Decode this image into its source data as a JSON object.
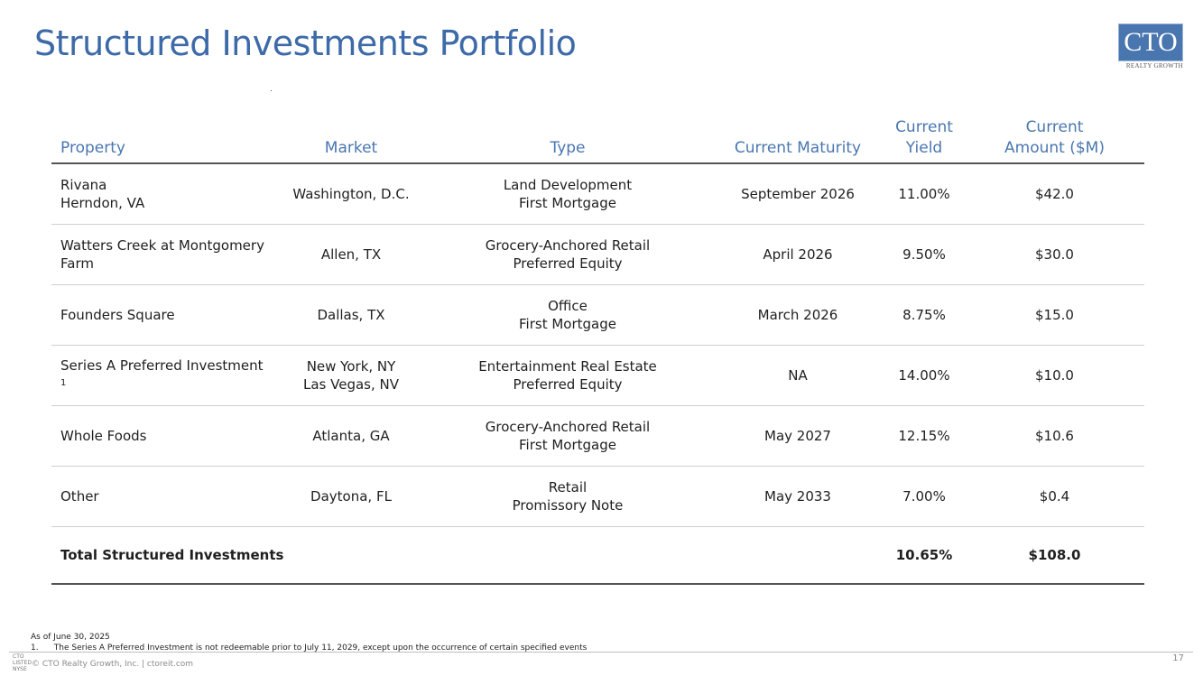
{
  "title": "Structured Investments Portfolio",
  "logo": {
    "mark": "CTO",
    "sub": "REALTY GROWTH"
  },
  "table": {
    "headers": {
      "property": "Property",
      "market": "Market",
      "type": "Type",
      "maturity": "Current Maturity",
      "yield_1": "Current",
      "yield_2": "Yield",
      "amount_1": "Current",
      "amount_2": "Amount ($M)"
    },
    "rows": [
      {
        "property_1": "Rivana",
        "property_2": "Herndon, VA",
        "market_1": "Washington, D.C.",
        "market_2": "",
        "type_1": "Land Development",
        "type_2": "First Mortgage",
        "maturity": "September 2026",
        "yield": "11.00%",
        "amount": "$42.0"
      },
      {
        "property_1": "Watters Creek at Montgomery",
        "property_2": "Farm",
        "market_1": "Allen, TX",
        "market_2": "",
        "type_1": "Grocery-Anchored Retail",
        "type_2": "Preferred Equity",
        "maturity": "April 2026",
        "yield": "9.50%",
        "amount": "$30.0"
      },
      {
        "property_1": "Founders Square",
        "property_2": "",
        "market_1": "Dallas, TX",
        "market_2": "",
        "type_1": "Office",
        "type_2": "First Mortgage",
        "maturity": "March 2026",
        "yield": "8.75%",
        "amount": "$15.0"
      },
      {
        "property_1": "Series A Preferred Investment",
        "property_2": "",
        "sup": "1",
        "market_1": "New York, NY",
        "market_2": "Las Vegas, NV",
        "type_1": "Entertainment Real Estate",
        "type_2": "Preferred Equity",
        "maturity": "NA",
        "yield": "14.00%",
        "amount": "$10.0"
      },
      {
        "property_1": "Whole Foods",
        "property_2": "",
        "market_1": "Atlanta, GA",
        "market_2": "",
        "type_1": "Grocery-Anchored Retail",
        "type_2": "First Mortgage",
        "maturity": "May 2027",
        "yield": "12.15%",
        "amount": "$10.6"
      },
      {
        "property_1": "Other",
        "property_2": "",
        "market_1": "Daytona, FL",
        "market_2": "",
        "type_1": "Retail",
        "type_2": "Promissory Note",
        "maturity": "May 2033",
        "yield": "7.00%",
        "amount": "$0.4"
      }
    ],
    "total": {
      "label": "Total Structured Investments",
      "yield": "10.65%",
      "amount": "$108.0"
    }
  },
  "footnotes": {
    "as_of": "As of June 30, 2025",
    "note_1": "1.      The Series A Preferred Investment is not redeemable prior to July 11, 2029, except upon the occurrence of certain specified events"
  },
  "footer": {
    "logo_text": "CTO\nLISTED\nNYSE",
    "copyright": "© CTO Realty Growth, Inc. | ctoreit.com",
    "page_number": "17"
  }
}
